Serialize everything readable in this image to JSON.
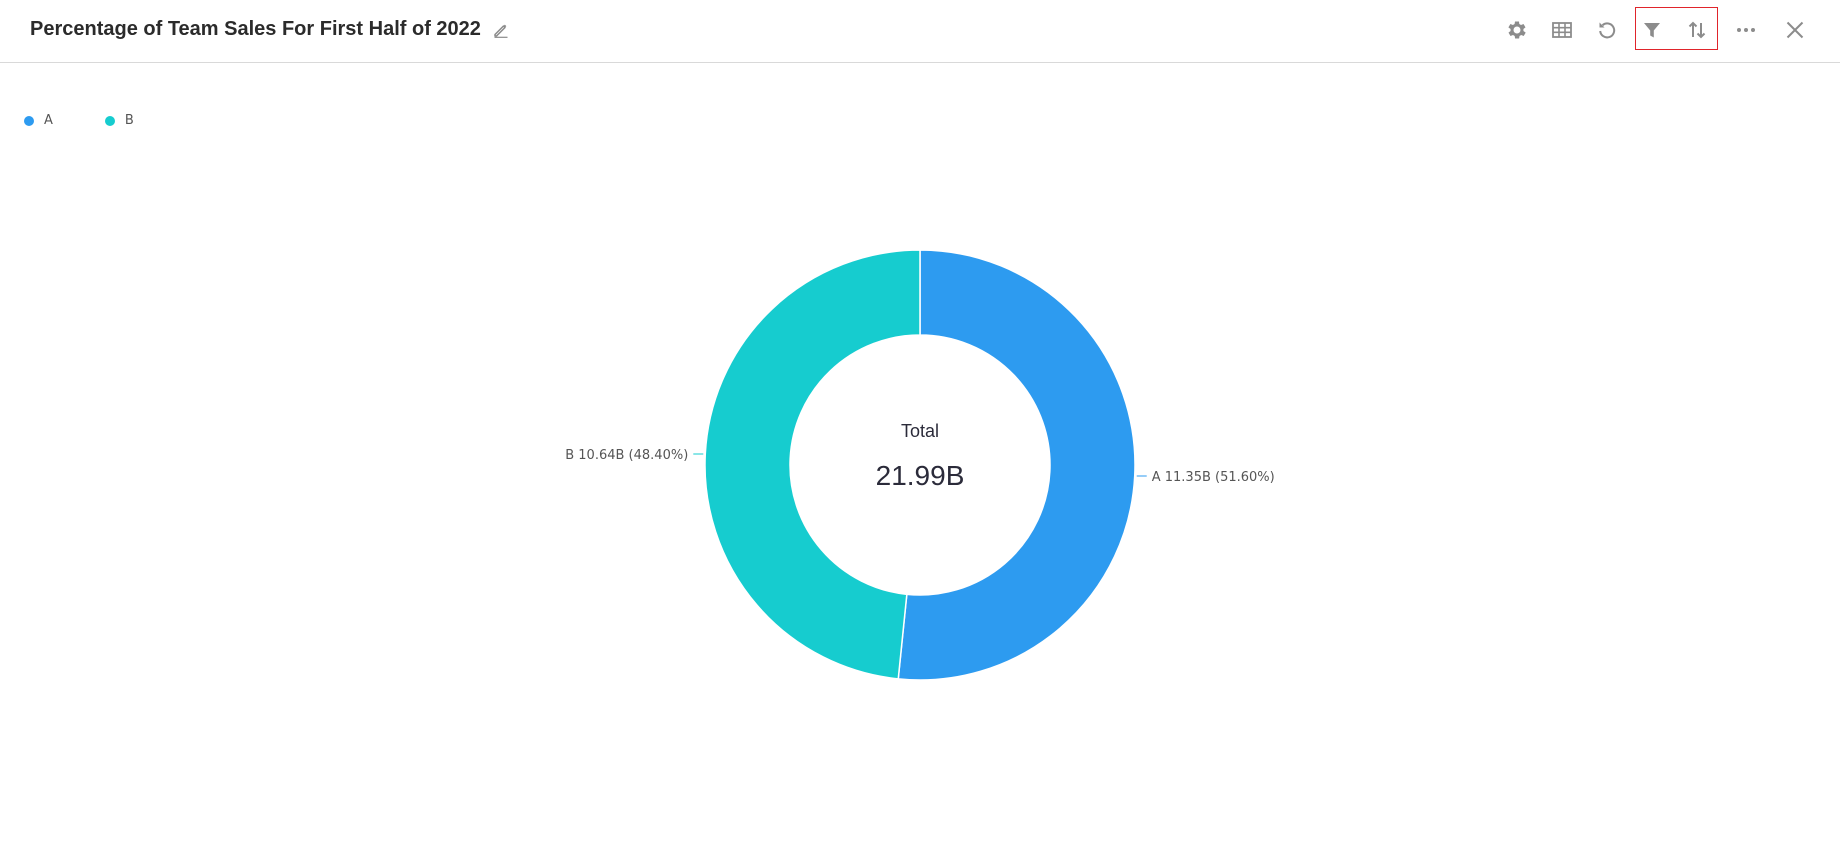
{
  "header": {
    "title": "Percentage of Team Sales For First Half of 2022",
    "icons": [
      "edit-icon",
      "settings-icon",
      "table-icon",
      "refresh-icon",
      "filter-icon",
      "sort-icon",
      "more-icon",
      "close-icon"
    ]
  },
  "colors": {
    "A": "#2d9bf0",
    "B": "#16cccf",
    "highlight": "#e0242b"
  },
  "legend": {
    "items": [
      {
        "label": "A",
        "color": "#2d9bf0"
      },
      {
        "label": "B",
        "color": "#16cccf"
      }
    ]
  },
  "chart_data": {
    "type": "pie",
    "style": "donut",
    "categories": [
      "A",
      "B"
    ],
    "values": [
      11.35,
      10.64
    ],
    "unit": "B",
    "labels": [
      "A  11.35B (51.60%)",
      "B  10.64B (48.40%)"
    ],
    "percentages": [
      51.6,
      48.4
    ],
    "center": {
      "title": "Total",
      "value": "21.99B"
    },
    "legend_placement": "top-left"
  }
}
